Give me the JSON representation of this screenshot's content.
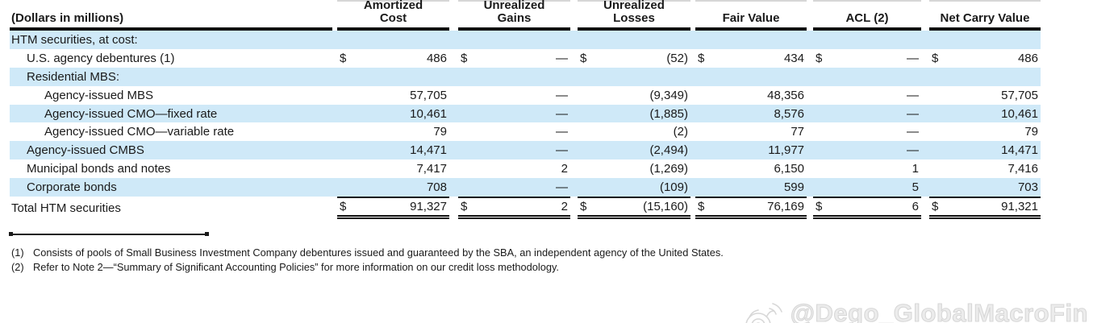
{
  "unit_label": "(Dollars in millions)",
  "columns": [
    {
      "label": "Amortized\nCost"
    },
    {
      "label": "Unrealized\nGains"
    },
    {
      "label": "Unrealized\nLosses"
    },
    {
      "label": "Fair Value"
    },
    {
      "label": "ACL (2)"
    },
    {
      "label": "Net Carry Value"
    }
  ],
  "rows": [
    {
      "label": "HTM securities, at cost:",
      "indent": 0,
      "shaded": true,
      "dollar": false,
      "values": [
        "",
        "",
        "",
        "",
        "",
        ""
      ]
    },
    {
      "label": "U.S. agency debentures (1)",
      "indent": 1,
      "shaded": false,
      "dollar": true,
      "values": [
        "486",
        "—",
        "(52)",
        "434",
        "—",
        "486"
      ]
    },
    {
      "label": "Residential MBS:",
      "indent": 1,
      "shaded": true,
      "dollar": false,
      "values": [
        "",
        "",
        "",
        "",
        "",
        ""
      ]
    },
    {
      "label": "Agency-issued MBS",
      "indent": 2,
      "shaded": false,
      "dollar": false,
      "values": [
        "57,705",
        "—",
        "(9,349)",
        "48,356",
        "—",
        "57,705"
      ]
    },
    {
      "label": "Agency-issued CMO—fixed rate",
      "indent": 2,
      "shaded": true,
      "dollar": false,
      "values": [
        "10,461",
        "—",
        "(1,885)",
        "8,576",
        "—",
        "10,461"
      ]
    },
    {
      "label": "Agency-issued CMO—variable rate",
      "indent": 2,
      "shaded": false,
      "dollar": false,
      "values": [
        "79",
        "—",
        "(2)",
        "77",
        "—",
        "79"
      ]
    },
    {
      "label": "Agency-issued CMBS",
      "indent": 1,
      "shaded": true,
      "dollar": false,
      "values": [
        "14,471",
        "—",
        "(2,494)",
        "11,977",
        "—",
        "14,471"
      ]
    },
    {
      "label": "Municipal bonds and notes",
      "indent": 1,
      "shaded": false,
      "dollar": false,
      "values": [
        "7,417",
        "2",
        "(1,269)",
        "6,150",
        "1",
        "7,416"
      ]
    },
    {
      "label": "Corporate bonds",
      "indent": 1,
      "shaded": true,
      "dollar": false,
      "values": [
        "708",
        "—",
        "(109)",
        "599",
        "5",
        "703"
      ]
    }
  ],
  "total": {
    "label": "Total HTM securities",
    "dollar": true,
    "values": [
      "91,327",
      "2",
      "(15,160)",
      "76,169",
      "6",
      "91,321"
    ]
  },
  "footnotes": [
    {
      "num": "(1)",
      "text": "Consists of pools of Small Business Investment Company debentures issued and guaranteed by the SBA, an independent agency of the United States."
    },
    {
      "num": "(2)",
      "text": "Refer to Note 2—“Summary of Significant Accounting Policies” for more information on our credit loss methodology."
    }
  ],
  "watermark": {
    "handle": "@Dego_GlobalMacroFin"
  },
  "colors": {
    "band": "#cfe9f8",
    "rule": "#111111",
    "text": "#1a1a1a",
    "watermark_stroke": "#d7d7d7"
  }
}
